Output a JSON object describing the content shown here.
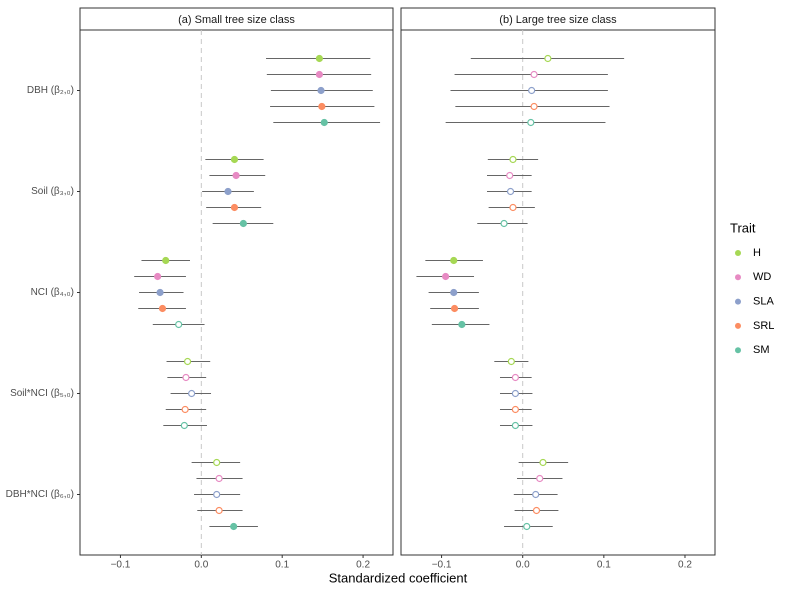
{
  "chart_data": {
    "type": "forest",
    "xlabel": "Standardized coefficient",
    "legend_title": "Trait",
    "categories": [
      "DBH (β₂,₀)",
      "Soil (β₃,₀)",
      "NCI (β₄,₀)",
      "Soil*NCI (β₅,₀)",
      "DBH*NCI (β₆,₀)"
    ],
    "series": [
      {
        "name": "H",
        "color": "#a6d854"
      },
      {
        "name": "WD",
        "color": "#e78ac3"
      },
      {
        "name": "SLA",
        "color": "#8da0cb"
      },
      {
        "name": "SRL",
        "color": "#fc8d62"
      },
      {
        "name": "SM",
        "color": "#66c2a5"
      }
    ],
    "xlim": [
      -0.15,
      0.237
    ],
    "xticks": [
      {
        "value": -0.1,
        "label": "−0.1"
      },
      {
        "value": 0,
        "label": "0.0"
      },
      0.1,
      0.2
    ],
    "panels": [
      {
        "title": "(a) Small tree size class",
        "series": [
          {
            "values": [
              0.146,
              0.041,
              -0.044,
              -0.017,
              0.019
            ],
            "lower": [
              0.08,
              0.005,
              -0.074,
              -0.043,
              -0.012
            ],
            "upper": [
              0.209,
              0.077,
              -0.014,
              0.011,
              0.048
            ],
            "significant": [
              true,
              true,
              true,
              false,
              false
            ]
          },
          {
            "values": [
              0.146,
              0.043,
              -0.054,
              -0.019,
              0.022
            ],
            "lower": [
              0.081,
              0.01,
              -0.083,
              -0.042,
              -0.006
            ],
            "upper": [
              0.21,
              0.079,
              -0.019,
              0.006,
              0.051
            ],
            "significant": [
              true,
              true,
              true,
              false,
              false
            ]
          },
          {
            "values": [
              0.148,
              0.033,
              -0.051,
              -0.012,
              0.019
            ],
            "lower": [
              0.086,
              0.001,
              -0.077,
              -0.038,
              -0.009
            ],
            "upper": [
              0.212,
              0.065,
              -0.022,
              0.012,
              0.048
            ],
            "significant": [
              true,
              true,
              true,
              false,
              false
            ]
          },
          {
            "values": [
              0.149,
              0.041,
              -0.048,
              -0.02,
              0.022
            ],
            "lower": [
              0.085,
              0.006,
              -0.078,
              -0.044,
              -0.005
            ],
            "upper": [
              0.214,
              0.074,
              -0.019,
              0.006,
              0.051
            ],
            "significant": [
              true,
              true,
              true,
              false,
              false
            ]
          },
          {
            "values": [
              0.152,
              0.052,
              -0.028,
              -0.021,
              0.04
            ],
            "lower": [
              0.089,
              0.014,
              -0.06,
              -0.047,
              0.01
            ],
            "upper": [
              0.221,
              0.089,
              0.004,
              0.007,
              0.07
            ],
            "significant": [
              true,
              true,
              false,
              false,
              true
            ]
          }
        ]
      },
      {
        "title": "(b) Large tree size class",
        "series": [
          {
            "values": [
              0.031,
              -0.012,
              -0.085,
              -0.014,
              0.025
            ],
            "lower": [
              -0.064,
              -0.043,
              -0.12,
              -0.035,
              -0.005
            ],
            "upper": [
              0.125,
              0.019,
              -0.049,
              0.007,
              0.056
            ],
            "significant": [
              false,
              false,
              true,
              false,
              false
            ]
          },
          {
            "values": [
              0.014,
              -0.016,
              -0.095,
              -0.009,
              0.021
            ],
            "lower": [
              -0.084,
              -0.044,
              -0.131,
              -0.028,
              -0.007
            ],
            "upper": [
              0.105,
              0.011,
              -0.06,
              0.011,
              0.049
            ],
            "significant": [
              false,
              false,
              true,
              false,
              false
            ]
          },
          {
            "values": [
              0.011,
              -0.015,
              -0.085,
              -0.009,
              0.016
            ],
            "lower": [
              -0.089,
              -0.044,
              -0.116,
              -0.028,
              -0.011
            ],
            "upper": [
              0.105,
              0.011,
              -0.054,
              0.012,
              0.043
            ],
            "significant": [
              false,
              false,
              true,
              false,
              false
            ]
          },
          {
            "values": [
              0.014,
              -0.012,
              -0.084,
              -0.009,
              0.017
            ],
            "lower": [
              -0.083,
              -0.042,
              -0.114,
              -0.028,
              -0.01
            ],
            "upper": [
              0.107,
              0.015,
              -0.054,
              0.011,
              0.044
            ],
            "significant": [
              false,
              false,
              true,
              false,
              false
            ]
          },
          {
            "values": [
              0.01,
              -0.023,
              -0.075,
              -0.009,
              0.005
            ],
            "lower": [
              -0.095,
              -0.056,
              -0.112,
              -0.028,
              -0.023
            ],
            "upper": [
              0.102,
              0.006,
              -0.041,
              0.012,
              0.037
            ],
            "significant": [
              false,
              false,
              true,
              false,
              false
            ]
          }
        ]
      }
    ]
  }
}
